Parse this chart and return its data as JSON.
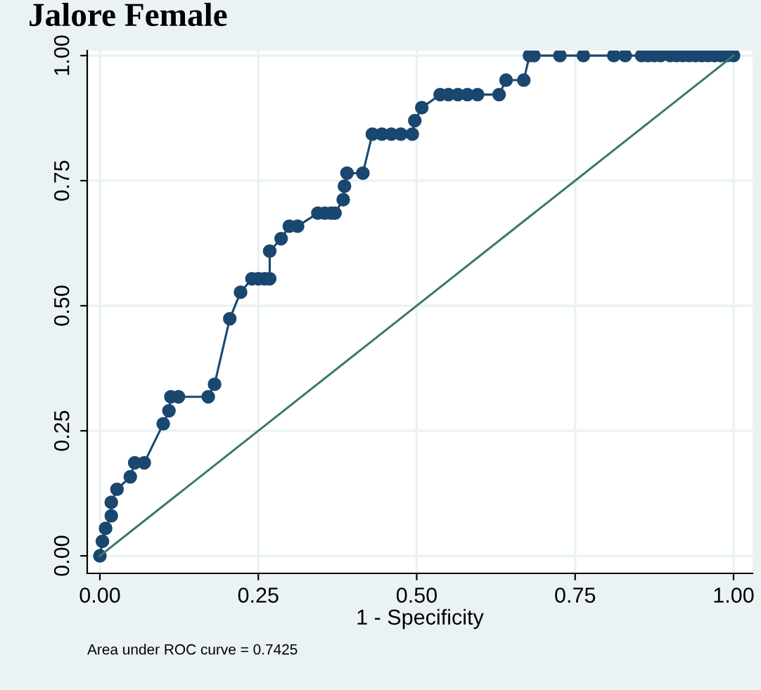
{
  "chart_data": {
    "type": "line",
    "title": "Jalore Female",
    "xlabel": "1 - Specificity",
    "annotations": [
      "Area under ROC curve = 0.7425"
    ],
    "xlim": [
      -0.02,
      1.03
    ],
    "ylim": [
      -0.035,
      1.01
    ],
    "xticks": [
      {
        "value": 0,
        "label": "0.00"
      },
      {
        "value": 0.25,
        "label": "0.25"
      },
      {
        "value": 0.5,
        "label": "0.50"
      },
      {
        "value": 0.75,
        "label": "0.75"
      },
      {
        "value": 1,
        "label": "1.00"
      }
    ],
    "yticks": [
      {
        "value": 0,
        "label": "0.00"
      },
      {
        "value": 0.25,
        "label": "0.25"
      },
      {
        "value": 0.5,
        "label": "0.50"
      },
      {
        "value": 0.75,
        "label": "0.75"
      },
      {
        "value": 1,
        "label": "1.00"
      }
    ],
    "grid": true,
    "legend": false,
    "series": [
      {
        "color": "#1a476f",
        "marker": "circle",
        "x": [
          0,
          0.004,
          0.009,
          0.018,
          0.018,
          0.027,
          0.048,
          0.055,
          0.07,
          0.1,
          0.109,
          0.112,
          0.124,
          0.171,
          0.181,
          0.205,
          0.222,
          0.24,
          0.25,
          0.26,
          0.268,
          0.268,
          0.286,
          0.299,
          0.312,
          0.344,
          0.355,
          0.365,
          0.371,
          0.384,
          0.386,
          0.39,
          0.415,
          0.43,
          0.445,
          0.46,
          0.475,
          0.493,
          0.497,
          0.508,
          0.537,
          0.55,
          0.565,
          0.58,
          0.596,
          0.63,
          0.641,
          0.669,
          0.678,
          0.685,
          0.726,
          0.763,
          0.811,
          0.829,
          0.855,
          0.865,
          0.875,
          0.885,
          0.9,
          0.91,
          0.92,
          0.93,
          0.94,
          0.95,
          0.96,
          0.97,
          0.98,
          0.99,
          1.0
        ],
        "values": [
          0,
          0.029,
          0.055,
          0.08,
          0.107,
          0.133,
          0.158,
          0.186,
          0.186,
          0.264,
          0.29,
          0.318,
          0.318,
          0.318,
          0.343,
          0.474,
          0.527,
          0.554,
          0.554,
          0.554,
          0.554,
          0.609,
          0.634,
          0.659,
          0.659,
          0.685,
          0.685,
          0.685,
          0.685,
          0.712,
          0.739,
          0.765,
          0.765,
          0.843,
          0.843,
          0.843,
          0.843,
          0.843,
          0.87,
          0.896,
          0.922,
          0.922,
          0.922,
          0.922,
          0.922,
          0.922,
          0.951,
          0.951,
          1,
          1,
          1,
          1,
          1,
          1,
          1,
          1,
          1,
          1,
          1,
          1,
          1,
          1,
          1,
          1,
          1,
          1,
          1,
          1,
          1
        ]
      },
      {
        "color": "#3a7a66",
        "marker": "none",
        "x": [
          0,
          1
        ],
        "values": [
          0,
          1
        ]
      }
    ]
  }
}
